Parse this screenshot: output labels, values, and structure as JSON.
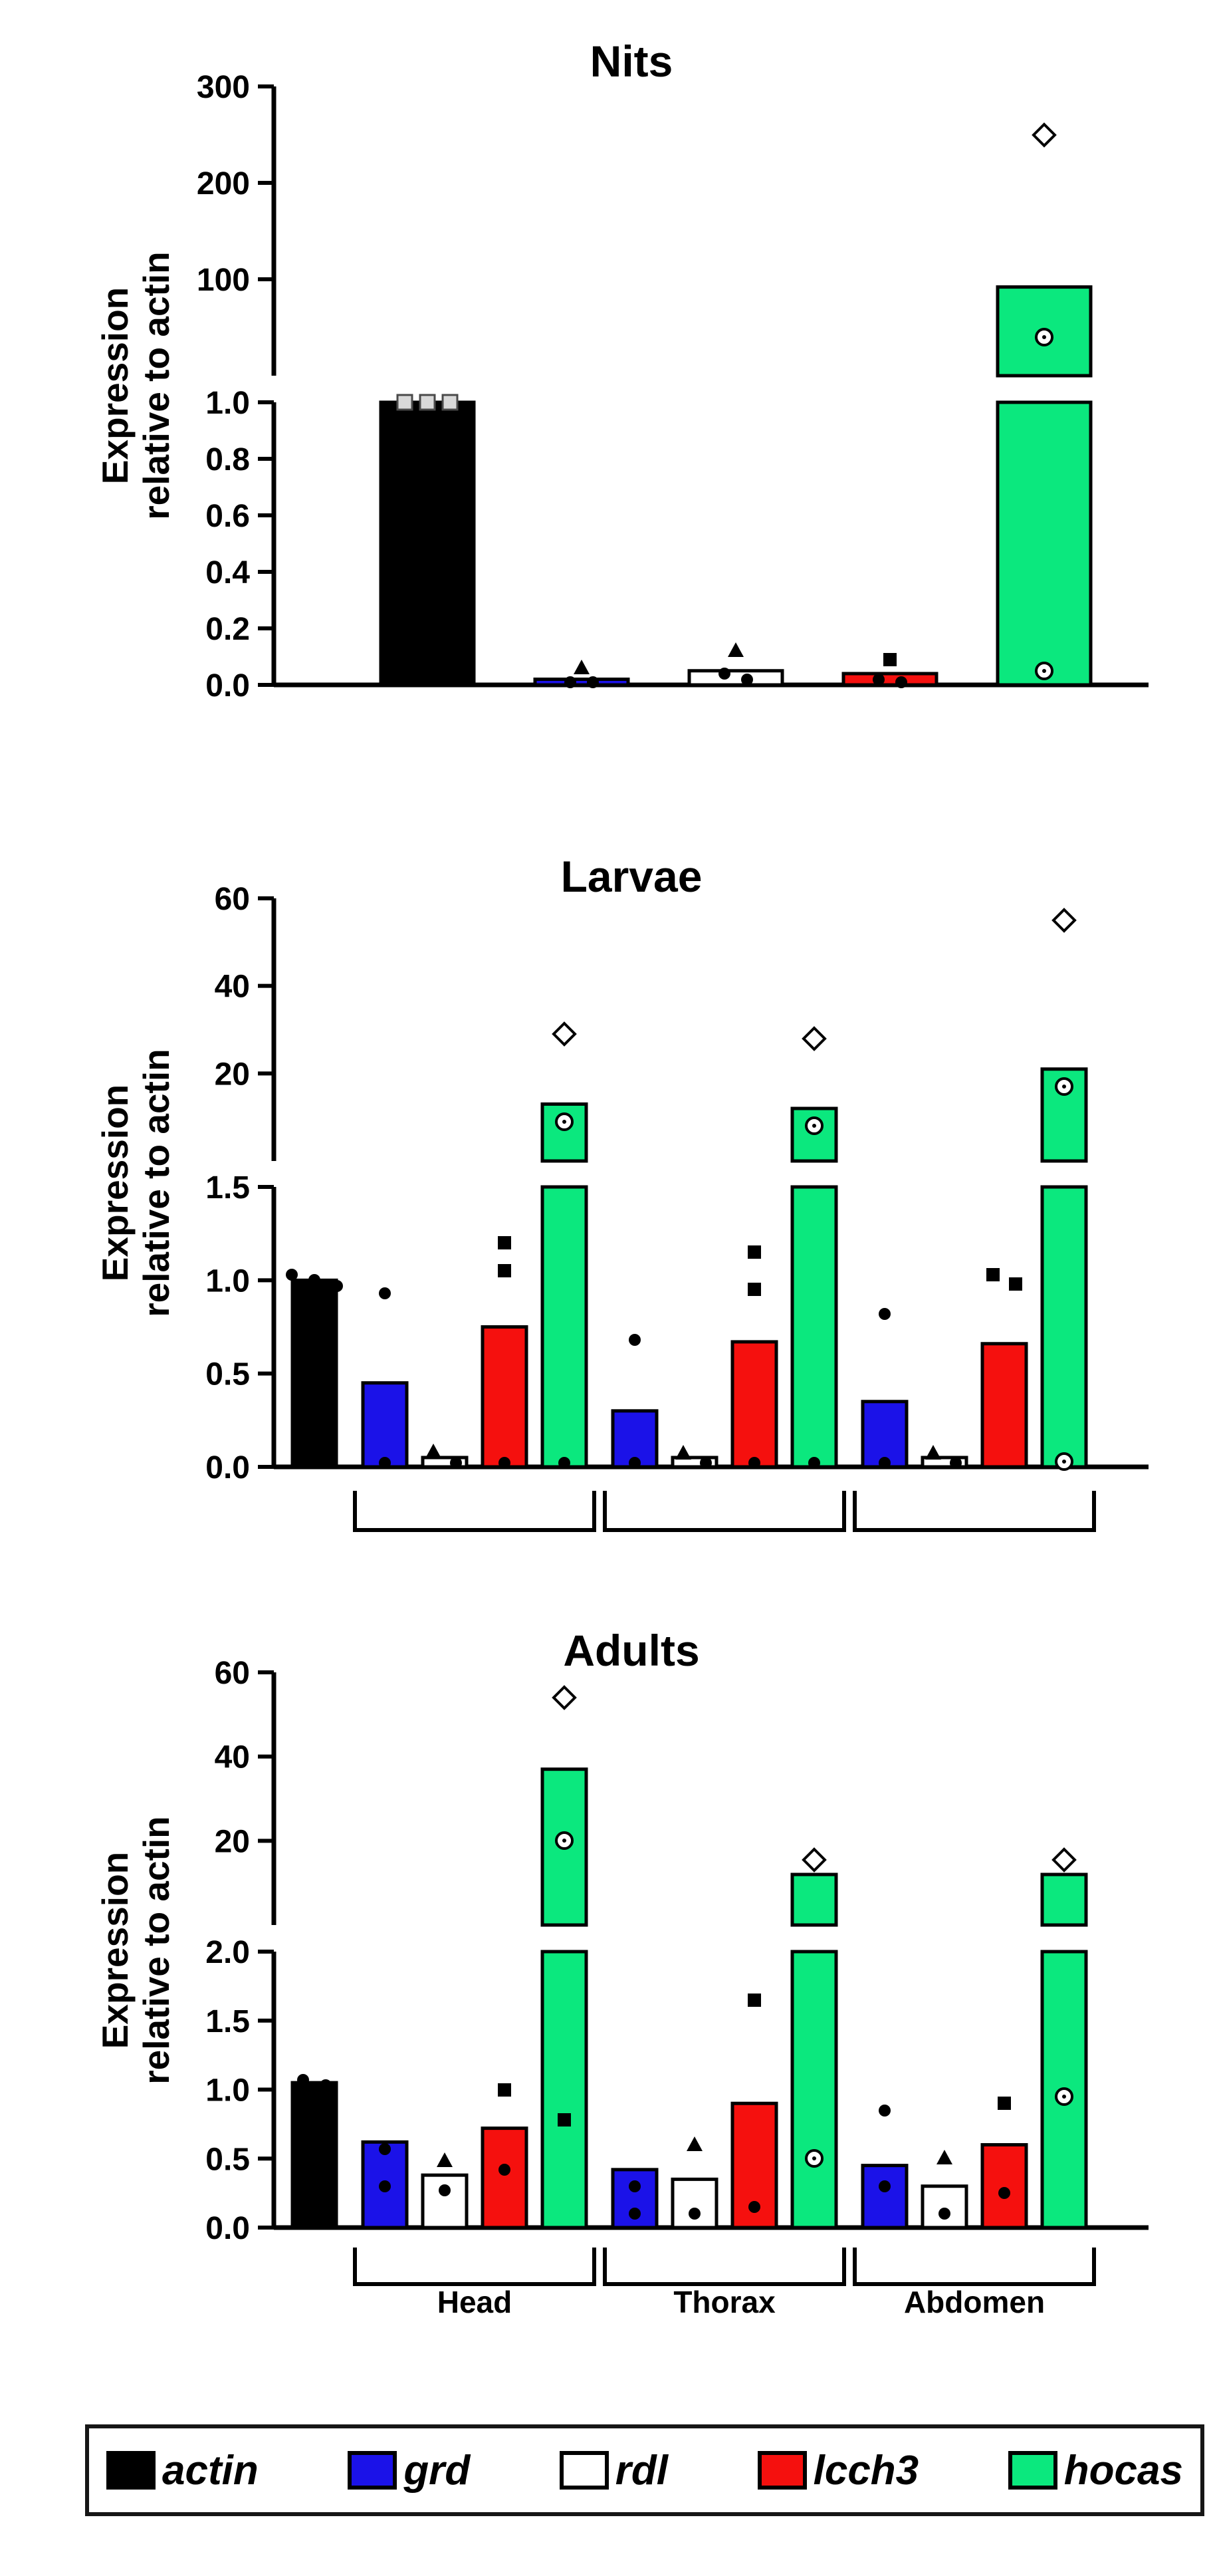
{
  "page": {
    "background": "#ffffff"
  },
  "legend": {
    "items": [
      {
        "label": "actin",
        "color": "#000000"
      },
      {
        "label": "grd",
        "color": "#1b12e8"
      },
      {
        "label": "rdl",
        "color": "#ffffff"
      },
      {
        "label": "lcch3",
        "color": "#f5100e"
      },
      {
        "label": "hocas",
        "color": "#0be87e"
      }
    ]
  },
  "chart_data": [
    {
      "type": "bar",
      "title": "Nits",
      "ylabel_line1": "Expression",
      "ylabel_line2": "relative to actin",
      "axis_break": true,
      "upper_axis": {
        "ylim": [
          0,
          300
        ],
        "ticks": [
          {
            "v": 300,
            "label": "300"
          },
          {
            "v": 200,
            "label": "200"
          },
          {
            "v": 100,
            "label": "100"
          }
        ]
      },
      "lower_axis": {
        "ylim": [
          0,
          1.0
        ],
        "ticks": [
          {
            "v": 1.0,
            "label": "1.0"
          },
          {
            "v": 0.8,
            "label": "0.8"
          },
          {
            "v": 0.6,
            "label": "0.6"
          },
          {
            "v": 0.4,
            "label": "0.4"
          },
          {
            "v": 0.2,
            "label": "0.2"
          },
          {
            "v": 0.0,
            "label": "0.0"
          }
        ]
      },
      "groups": [
        {
          "label": "",
          "bars": [
            {
              "name": "actin",
              "value": 1.0,
              "points": [
                {
                  "marker": "square-open",
                  "v": 1.0
                },
                {
                  "marker": "square-open",
                  "v": 1.0
                },
                {
                  "marker": "square-open",
                  "v": 1.0
                }
              ]
            }
          ]
        },
        {
          "label": "",
          "bars": [
            {
              "name": "grd",
              "value": 0.02,
              "points": [
                {
                  "marker": "triangle",
                  "v": 0.06
                },
                {
                  "marker": "dot",
                  "v": 0.01
                },
                {
                  "marker": "dot",
                  "v": 0.01
                }
              ]
            }
          ]
        },
        {
          "label": "",
          "bars": [
            {
              "name": "rdl",
              "value": 0.05,
              "points": [
                {
                  "marker": "triangle",
                  "v": 0.12
                },
                {
                  "marker": "dot",
                  "v": 0.04
                },
                {
                  "marker": "dot",
                  "v": 0.02
                }
              ]
            }
          ]
        },
        {
          "label": "",
          "bars": [
            {
              "name": "lcch3",
              "value": 0.04,
              "points": [
                {
                  "marker": "square",
                  "v": 0.09
                },
                {
                  "marker": "dot",
                  "v": 0.02
                },
                {
                  "marker": "dot",
                  "v": 0.01
                }
              ]
            }
          ]
        },
        {
          "label": "",
          "bars": [
            {
              "name": "hocas",
              "value": 92,
              "points": [
                {
                  "marker": "diamond-open",
                  "v": 250
                },
                {
                  "marker": "circle-open",
                  "v": 40
                },
                {
                  "marker": "circle-open",
                  "v": 0.05
                }
              ]
            }
          ]
        }
      ]
    },
    {
      "type": "bar",
      "title": "Larvae",
      "ylabel_line1": "Expression",
      "ylabel_line2": "relative to actin",
      "axis_break": true,
      "upper_axis": {
        "ylim": [
          0,
          60
        ],
        "ticks": [
          {
            "v": 60,
            "label": "60"
          },
          {
            "v": 40,
            "label": "40"
          },
          {
            "v": 20,
            "label": "20"
          }
        ]
      },
      "lower_axis": {
        "ylim": [
          0,
          1.5
        ],
        "ticks": [
          {
            "v": 1.5,
            "label": "1.5"
          },
          {
            "v": 1.0,
            "label": "1.0"
          },
          {
            "v": 0.5,
            "label": "0.5"
          },
          {
            "v": 0.0,
            "label": "0.0"
          }
        ]
      },
      "groups": [
        {
          "label": "",
          "bars": [
            {
              "name": "actin",
              "value": 1.0,
              "points": [
                {
                  "marker": "dot",
                  "v": 1.03
                },
                {
                  "marker": "dot",
                  "v": 1.0
                },
                {
                  "marker": "dot",
                  "v": 0.97
                }
              ]
            }
          ]
        },
        {
          "label": "",
          "bars": [
            {
              "name": "grd",
              "value": 0.45,
              "points": [
                {
                  "marker": "dot",
                  "v": 0.93
                },
                {
                  "marker": "dot",
                  "v": 0.02
                }
              ]
            },
            {
              "name": "rdl",
              "value": 0.05,
              "points": [
                {
                  "marker": "triangle",
                  "v": 0.08
                },
                {
                  "marker": "dot",
                  "v": 0.02
                }
              ]
            },
            {
              "name": "lcch3",
              "value": 0.75,
              "points": [
                {
                  "marker": "square",
                  "v": 1.2
                },
                {
                  "marker": "square",
                  "v": 1.05
                },
                {
                  "marker": "dot",
                  "v": 0.02
                }
              ]
            },
            {
              "name": "hocas",
              "value": 13,
              "points": [
                {
                  "marker": "diamond-open",
                  "v": 29
                },
                {
                  "marker": "circle-open",
                  "v": 9
                },
                {
                  "marker": "dot",
                  "v": 0.02
                }
              ]
            }
          ]
        },
        {
          "label": "",
          "bars": [
            {
              "name": "grd",
              "value": 0.3,
              "points": [
                {
                  "marker": "dot",
                  "v": 0.68
                },
                {
                  "marker": "dot",
                  "v": 0.02
                }
              ]
            },
            {
              "name": "rdl",
              "value": 0.05,
              "points": [
                {
                  "marker": "triangle",
                  "v": 0.07
                },
                {
                  "marker": "dot",
                  "v": 0.02
                }
              ]
            },
            {
              "name": "lcch3",
              "value": 0.67,
              "points": [
                {
                  "marker": "square",
                  "v": 1.15
                },
                {
                  "marker": "square",
                  "v": 0.95
                },
                {
                  "marker": "dot",
                  "v": 0.02
                }
              ]
            },
            {
              "name": "hocas",
              "value": 12,
              "points": [
                {
                  "marker": "diamond-open",
                  "v": 28
                },
                {
                  "marker": "circle-open",
                  "v": 8
                },
                {
                  "marker": "dot",
                  "v": 0.02
                }
              ]
            }
          ]
        },
        {
          "label": "",
          "bars": [
            {
              "name": "grd",
              "value": 0.35,
              "points": [
                {
                  "marker": "dot",
                  "v": 0.82
                },
                {
                  "marker": "dot",
                  "v": 0.02
                }
              ]
            },
            {
              "name": "rdl",
              "value": 0.05,
              "points": [
                {
                  "marker": "triangle",
                  "v": 0.07
                },
                {
                  "marker": "dot",
                  "v": 0.02
                }
              ]
            },
            {
              "name": "lcch3",
              "value": 0.66,
              "points": [
                {
                  "marker": "square",
                  "v": 1.03
                },
                {
                  "marker": "square",
                  "v": 0.98
                }
              ]
            },
            {
              "name": "hocas",
              "value": 21,
              "points": [
                {
                  "marker": "diamond-open",
                  "v": 55
                },
                {
                  "marker": "circle-open",
                  "v": 17
                },
                {
                  "marker": "circle-open",
                  "v": 0.03
                }
              ]
            }
          ]
        }
      ]
    },
    {
      "type": "bar",
      "title": "Adults",
      "ylabel_line1": "Expression",
      "ylabel_line2": "relative to actin",
      "axis_break": true,
      "upper_axis": {
        "ylim": [
          0,
          60
        ],
        "ticks": [
          {
            "v": 60,
            "label": "60"
          },
          {
            "v": 40,
            "label": "40"
          },
          {
            "v": 20,
            "label": "20"
          }
        ]
      },
      "lower_axis": {
        "ylim": [
          0,
          2.0
        ],
        "ticks": [
          {
            "v": 2.0,
            "label": "2.0"
          },
          {
            "v": 1.5,
            "label": "1.5"
          },
          {
            "v": 1.0,
            "label": "1.0"
          },
          {
            "v": 0.5,
            "label": "0.5"
          },
          {
            "v": 0.0,
            "label": "0.0"
          }
        ]
      },
      "groups": [
        {
          "label": "",
          "bars": [
            {
              "name": "actin",
              "value": 1.05,
              "points": [
                {
                  "marker": "dot",
                  "v": 1.07
                },
                {
                  "marker": "dot",
                  "v": 1.03
                }
              ]
            }
          ]
        },
        {
          "label": "Head",
          "bars": [
            {
              "name": "grd",
              "value": 0.62,
              "points": [
                {
                  "marker": "dot",
                  "v": 0.57
                },
                {
                  "marker": "dot",
                  "v": 0.3
                }
              ]
            },
            {
              "name": "rdl",
              "value": 0.38,
              "points": [
                {
                  "marker": "triangle",
                  "v": 0.48
                },
                {
                  "marker": "dot",
                  "v": 0.27
                }
              ]
            },
            {
              "name": "lcch3",
              "value": 0.72,
              "points": [
                {
                  "marker": "square",
                  "v": 1.0
                },
                {
                  "marker": "dot",
                  "v": 0.42
                }
              ]
            },
            {
              "name": "hocas",
              "value": 37,
              "points": [
                {
                  "marker": "diamond-open",
                  "v": 54
                },
                {
                  "marker": "circle-open",
                  "v": 20
                },
                {
                  "marker": "square",
                  "v": 0.78
                }
              ]
            }
          ]
        },
        {
          "label": "Thorax",
          "bars": [
            {
              "name": "grd",
              "value": 0.42,
              "points": [
                {
                  "marker": "dot",
                  "v": 0.3
                },
                {
                  "marker": "dot",
                  "v": 0.1
                }
              ]
            },
            {
              "name": "rdl",
              "value": 0.35,
              "points": [
                {
                  "marker": "triangle",
                  "v": 0.6
                },
                {
                  "marker": "dot",
                  "v": 0.1
                }
              ]
            },
            {
              "name": "lcch3",
              "value": 0.9,
              "points": [
                {
                  "marker": "square",
                  "v": 1.65
                },
                {
                  "marker": "dot",
                  "v": 0.15
                }
              ]
            },
            {
              "name": "hocas",
              "value": 12,
              "points": [
                {
                  "marker": "diamond-open",
                  "v": 15.5
                },
                {
                  "marker": "circle-open",
                  "v": 0.5
                }
              ]
            }
          ]
        },
        {
          "label": "Abdomen",
          "bars": [
            {
              "name": "grd",
              "value": 0.45,
              "points": [
                {
                  "marker": "dot",
                  "v": 0.85
                },
                {
                  "marker": "dot",
                  "v": 0.3
                }
              ]
            },
            {
              "name": "rdl",
              "value": 0.3,
              "points": [
                {
                  "marker": "triangle",
                  "v": 0.5
                },
                {
                  "marker": "dot",
                  "v": 0.1
                }
              ]
            },
            {
              "name": "lcch3",
              "value": 0.6,
              "points": [
                {
                  "marker": "square",
                  "v": 0.9
                },
                {
                  "marker": "dot",
                  "v": 0.25
                }
              ]
            },
            {
              "name": "hocas",
              "value": 12,
              "points": [
                {
                  "marker": "diamond-open",
                  "v": 15.5
                },
                {
                  "marker": "circle-open",
                  "v": 0.95
                }
              ]
            }
          ]
        }
      ]
    }
  ]
}
